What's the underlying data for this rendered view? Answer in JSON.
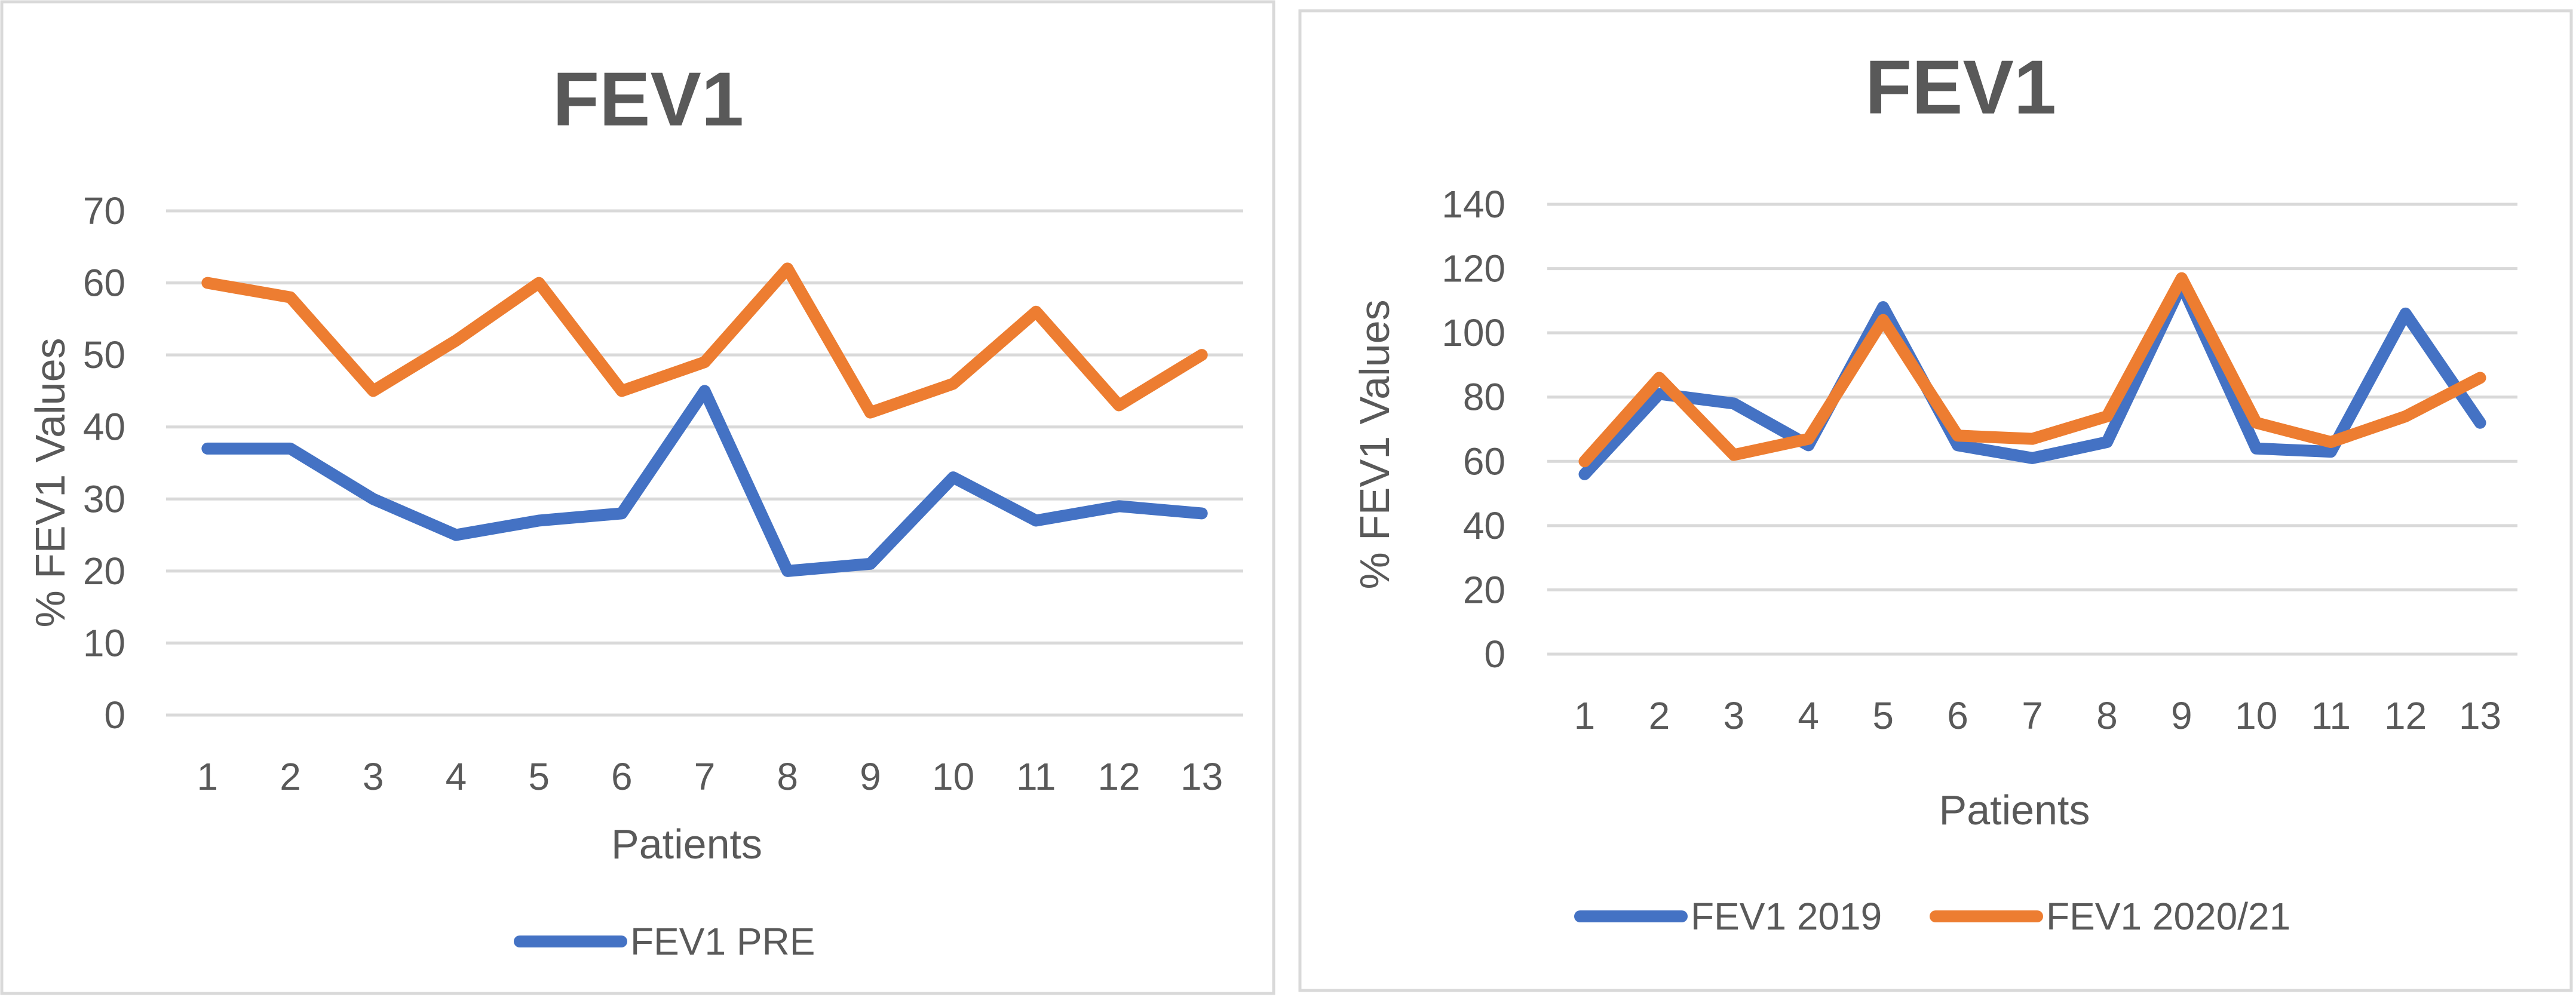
{
  "chart_data": [
    {
      "type": "line",
      "title": "FEV1",
      "xlabel": "Patients",
      "ylabel": "% FEV1 Values",
      "categories": [
        "1",
        "2",
        "3",
        "4",
        "5",
        "6",
        "7",
        "8",
        "9",
        "10",
        "11",
        "12",
        "13"
      ],
      "ylim": [
        0,
        70
      ],
      "yticks": [
        0,
        10,
        20,
        30,
        40,
        50,
        60,
        70
      ],
      "grid": true,
      "legend_position": "bottom",
      "legend": [
        "FEV1 PRE"
      ],
      "series": [
        {
          "name": "FEV1 PRE",
          "color": "#4472c4",
          "in_legend": true,
          "values": [
            37,
            37,
            30,
            25,
            27,
            28,
            45,
            20,
            21,
            33,
            27,
            29,
            28
          ]
        },
        {
          "name": "",
          "color": "#ed7d31",
          "in_legend": false,
          "values": [
            60,
            58,
            45,
            52,
            60,
            45,
            49,
            62,
            42,
            46,
            56,
            43,
            50
          ]
        }
      ]
    },
    {
      "type": "line",
      "title": "FEV1",
      "xlabel": "Patients",
      "ylabel": "% FEV1 Values",
      "categories": [
        "1",
        "2",
        "3",
        "4",
        "5",
        "6",
        "7",
        "8",
        "9",
        "10",
        "11",
        "12",
        "13"
      ],
      "ylim": [
        0,
        140
      ],
      "yticks": [
        0,
        20,
        40,
        60,
        80,
        100,
        120,
        140
      ],
      "grid": true,
      "legend_position": "bottom",
      "legend": [
        "FEV1 2019",
        "FEV1 2020/21"
      ],
      "series": [
        {
          "name": "FEV1 2019",
          "color": "#4472c4",
          "in_legend": true,
          "values": [
            56,
            81,
            78,
            65,
            108,
            65,
            61,
            66,
            115,
            64,
            63,
            106,
            72
          ]
        },
        {
          "name": "FEV1 2020/21",
          "color": "#ed7d31",
          "in_legend": true,
          "values": [
            60,
            86,
            62,
            67,
            104,
            68,
            67,
            74,
            117,
            72,
            66,
            74,
            86
          ]
        }
      ]
    }
  ]
}
